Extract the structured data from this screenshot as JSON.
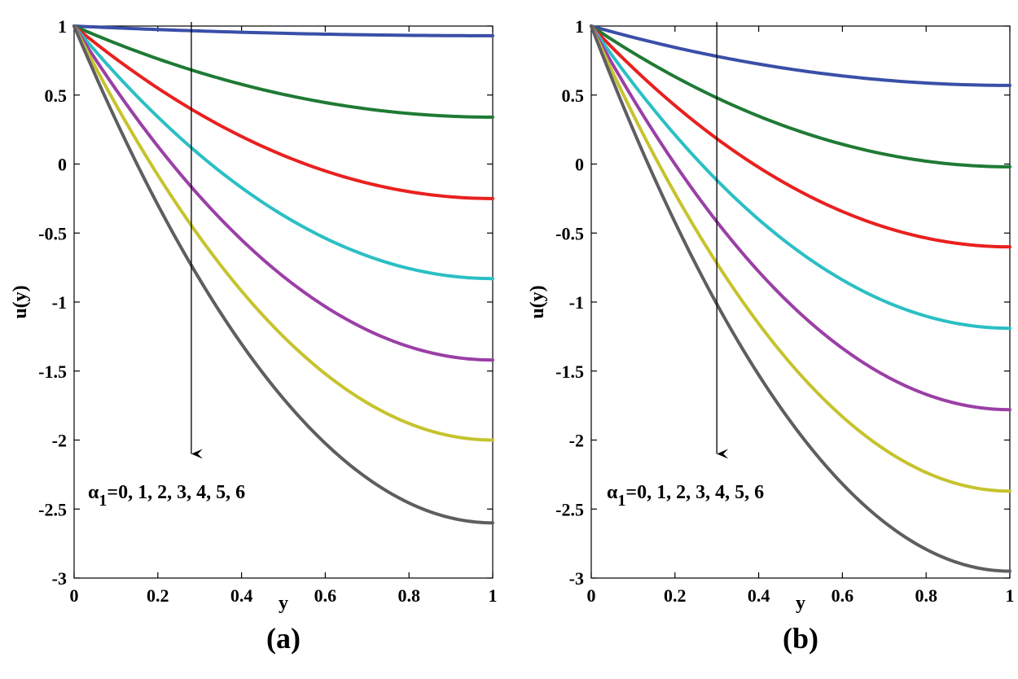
{
  "chart_data": [
    {
      "type": "line",
      "panel_label": "(a)",
      "xlabel": "y",
      "ylabel": "u(y)",
      "xlim": [
        0,
        1
      ],
      "ylim": [
        -3,
        1
      ],
      "x_ticks": [
        "0",
        "0.2",
        "0.4",
        "0.6",
        "0.8",
        "1"
      ],
      "y_ticks": [
        "1",
        "0.5",
        "0",
        "-0.5",
        "-1",
        "-1.5",
        "-2",
        "-2.5",
        "-3"
      ],
      "annotation": {
        "symbol": "α",
        "subscript": "1",
        "text": "=0, 1, 2, 3, 4, 5, 6"
      },
      "arrow": {
        "x": 0.28,
        "y_from": 1.03,
        "y_to": -2.1
      },
      "series": [
        {
          "name": "α1=0",
          "color": "#3a4fa8",
          "start": 1,
          "end": 0.93
        },
        {
          "name": "α1=1",
          "color": "#1f7a34",
          "start": 1,
          "end": 0.34
        },
        {
          "name": "α1=2",
          "color": "#e8211f",
          "start": 1,
          "end": -0.25
        },
        {
          "name": "α1=3",
          "color": "#2bbfc4",
          "start": 1,
          "end": -0.83
        },
        {
          "name": "α1=4",
          "color": "#9b3fa6",
          "start": 1,
          "end": -1.42
        },
        {
          "name": "α1=5",
          "color": "#c6c32e",
          "start": 1,
          "end": -2.0
        },
        {
          "name": "α1=6",
          "color": "#5e5e62",
          "start": 1,
          "end": -2.6
        }
      ]
    },
    {
      "type": "line",
      "panel_label": "(b)",
      "xlabel": "y",
      "ylabel": "u(y)",
      "xlim": [
        0,
        1
      ],
      "ylim": [
        -3,
        1
      ],
      "x_ticks": [
        "0",
        "0.2",
        "0.4",
        "0.6",
        "0.8",
        "1"
      ],
      "y_ticks": [
        "1",
        "0.5",
        "0",
        "-0.5",
        "-1",
        "-1.5",
        "-2",
        "-2.5",
        "-3"
      ],
      "annotation": {
        "symbol": "α",
        "subscript": "1",
        "text": "=0, 1, 2, 3, 4, 5, 6"
      },
      "arrow": {
        "x": 0.3,
        "y_from": 1.03,
        "y_to": -2.1
      },
      "series": [
        {
          "name": "α1=0",
          "color": "#3a4fa8",
          "start": 1,
          "end": 0.57
        },
        {
          "name": "α1=1",
          "color": "#1f7a34",
          "start": 1,
          "end": -0.02
        },
        {
          "name": "α1=2",
          "color": "#e8211f",
          "start": 1,
          "end": -0.6
        },
        {
          "name": "α1=3",
          "color": "#2bbfc4",
          "start": 1,
          "end": -1.19
        },
        {
          "name": "α1=4",
          "color": "#9b3fa6",
          "start": 1,
          "end": -1.78
        },
        {
          "name": "α1=5",
          "color": "#c6c32e",
          "start": 1,
          "end": -2.37
        },
        {
          "name": "α1=6",
          "color": "#5e5e62",
          "start": 1,
          "end": -2.95
        }
      ]
    }
  ]
}
